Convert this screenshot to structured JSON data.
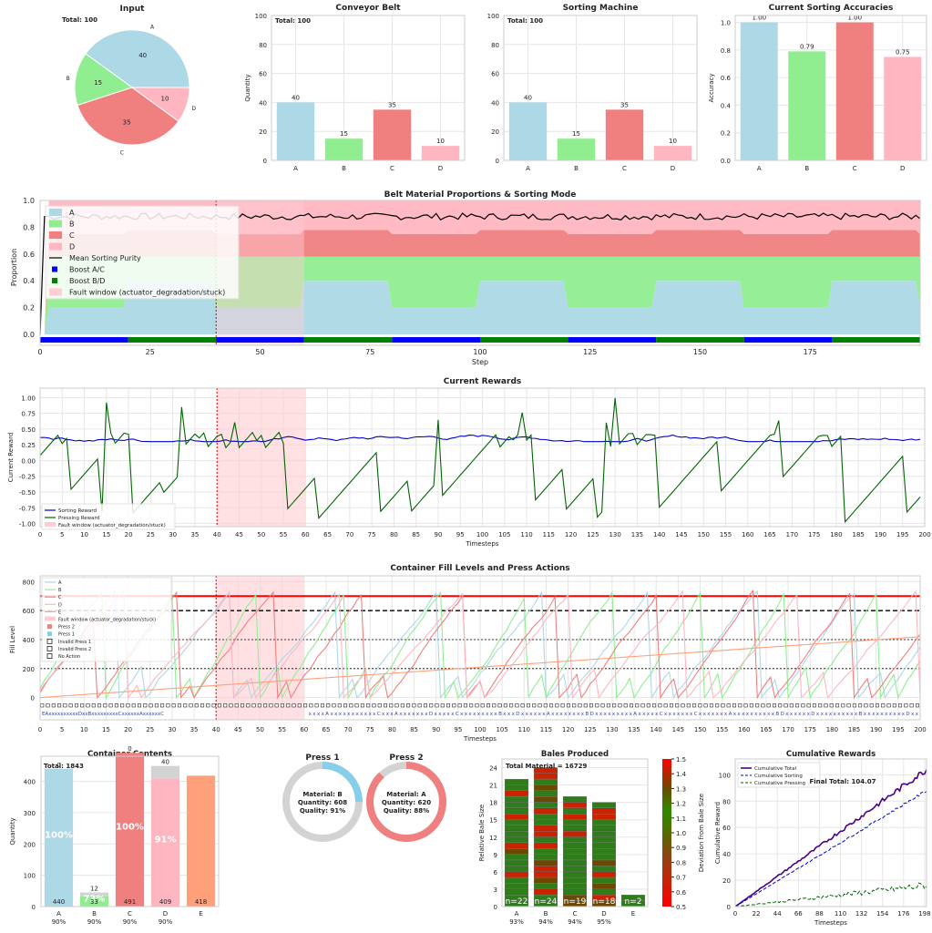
{
  "colors": {
    "A": "#add8e6",
    "B": "#90ee90",
    "C": "#f08080",
    "D": "#ffb6c1",
    "E": "#ffa07a",
    "grid": "#e6e6e6",
    "reward_sorting": "#0000cd",
    "reward_pressing": "#006400",
    "fault": "#ffcdd2",
    "boost_ac": "#0000ff",
    "boost_bd": "#008000",
    "purity": "#000000",
    "threshold_red": "#ff0000",
    "threshold_black": "#000000"
  },
  "input_pie": {
    "title": "Input",
    "total_label": "Total: 100",
    "slices": [
      {
        "label": "A",
        "value": 40
      },
      {
        "label": "B",
        "value": 15
      },
      {
        "label": "C",
        "value": 35
      },
      {
        "label": "D",
        "value": 10
      }
    ]
  },
  "conveyor": {
    "title": "Conveyor Belt",
    "total_label": "Total: 100",
    "ylabel": "Quantity",
    "categories": [
      "A",
      "B",
      "C",
      "D"
    ],
    "values": [
      40,
      15,
      35,
      10
    ],
    "ylim": [
      0,
      100
    ],
    "yticks": [
      "0",
      "20",
      "40",
      "60",
      "80",
      "100"
    ]
  },
  "sorting_machine": {
    "title": "Sorting Machine",
    "total_label": "Total: 100",
    "categories": [
      "A",
      "B",
      "C",
      "D"
    ],
    "values": [
      40,
      15,
      35,
      10
    ],
    "ylim": [
      0,
      100
    ],
    "yticks": [
      "0",
      "20",
      "40",
      "60",
      "80",
      "100"
    ]
  },
  "accuracies": {
    "title": "Current Sorting Accuracies",
    "ylabel": "Accuracy",
    "categories": [
      "A",
      "B",
      "C",
      "D"
    ],
    "values": [
      1.0,
      0.79,
      1.0,
      0.75
    ],
    "labels": [
      "1.00",
      "0.79",
      "1.00",
      "0.75"
    ],
    "ylim": [
      0,
      1.05
    ],
    "yticks": [
      "0.0",
      "0.2",
      "0.4",
      "0.6",
      "0.8",
      "1.0"
    ]
  },
  "proportions": {
    "title": "Belt Material Proportions & Sorting Mode",
    "xlabel": "Step",
    "ylabel": "Proportion",
    "xticks": [
      "0",
      "25",
      "50",
      "75",
      "100",
      "125",
      "150",
      "175"
    ],
    "yticks": [
      "0.0",
      "0.2",
      "0.4",
      "0.6",
      "0.8",
      "1.0"
    ],
    "legend": [
      "A",
      "B",
      "C",
      "D",
      "Mean Sorting Purity",
      "Boost A/C",
      "Boost B/D",
      "Fault window (actuator_degradation/stuck)"
    ],
    "fault_window": [
      40,
      60
    ]
  },
  "rewards": {
    "title": "Current Rewards",
    "xlabel": "Timesteps",
    "ylabel": "Current Reward",
    "xticks": [
      "0",
      "5",
      "10",
      "15",
      "20",
      "25",
      "30",
      "35",
      "40",
      "45",
      "50",
      "55",
      "60",
      "65",
      "70",
      "75",
      "80",
      "85",
      "90",
      "95",
      "100",
      "105",
      "110",
      "115",
      "120",
      "125",
      "130",
      "135",
      "140",
      "145",
      "150",
      "155",
      "160",
      "165",
      "170",
      "175",
      "180",
      "185",
      "190",
      "195",
      "200"
    ],
    "yticks": [
      "-1.00",
      "-0.75",
      "-0.50",
      "-0.25",
      "0.00",
      "0.25",
      "0.50",
      "0.75",
      "1.00"
    ],
    "legend": [
      "Sorting Reward",
      "Pressing Reward",
      "Fault window (actuator_degradation/stuck)"
    ],
    "fault_window": [
      40,
      60
    ]
  },
  "container_levels": {
    "title": "Container Fill Levels and Press Actions",
    "xlabel": "Timesteps",
    "ylabel": "Fill Level",
    "yticks": [
      "0",
      "200",
      "400",
      "600",
      "800"
    ],
    "legend": [
      "A",
      "B",
      "C",
      "D",
      "E",
      "Fault window (actuator_degradation/stuck)",
      "Press 2",
      "Press 1",
      "Invalid Press 1",
      "Invalid Press 2",
      "No Action"
    ],
    "thresholds": [
      700,
      600,
      400,
      200
    ],
    "action_row_text": "EAxxxxxxxxxxDxxBxxxxxxxxxCxxxxxxAxxxxxxC",
    "action_row_text_2": "xxxxAxxxxxxxxxxxCxxxAxxxxxxxDxxxxxCxxxxxxxxxBxxxDxxxxxxAxxxxxxxxBDxxxxxxxxxAxxxxxCxxxxxxxCxxxxxxxAxxxxxxxxxxBDxxxxxxDxxxxxxxxxxBxxxxxxxxxxDxx"
  },
  "container_contents": {
    "title": "Container Contents",
    "total_label": "Total: 1843",
    "ylabel": "Quantity",
    "categories": [
      "A",
      "B",
      "C",
      "D",
      "E"
    ],
    "percent_labels": [
      "90%",
      "90%",
      "90%",
      "90%",
      ""
    ],
    "values": [
      440,
      33,
      491,
      409,
      418
    ],
    "impurities": [
      0,
      12,
      0,
      40,
      0
    ],
    "inner_labels": [
      "100%",
      "73%",
      "100%",
      "91%",
      ""
    ],
    "top_marks": [
      "0",
      "12",
      "0",
      "40",
      ""
    ],
    "ylim": [
      0,
      480
    ],
    "yticks": [
      "0",
      "100",
      "200",
      "300",
      "400"
    ]
  },
  "presses": [
    {
      "title": "Press 1",
      "material_label": "Material: B",
      "quantity_label": "Quantity: 608",
      "quality_label": "Quality: 91%",
      "fill": 0.25,
      "color": "#87ceeb"
    },
    {
      "title": "Press 2",
      "material_label": "Material: A",
      "quantity_label": "Quantity: 620",
      "quality_label": "Quality: 88%",
      "fill": 0.88,
      "color": "#f08080"
    }
  ],
  "bales": {
    "title": "Bales Produced",
    "total_label": "Total Material = 16729",
    "ylabel": "Relative Bale Size",
    "categories": [
      "A",
      "B",
      "C",
      "D",
      "E"
    ],
    "counts": [
      22,
      24,
      19,
      18,
      2
    ],
    "count_labels": [
      "n=22",
      "n=24",
      "n=19",
      "n=18",
      "n=2"
    ],
    "quality_labels": [
      "93%",
      "94%",
      "94%",
      "95%",
      ""
    ],
    "yticks": [
      "0",
      "3",
      "6",
      "9",
      "12",
      "15",
      "18",
      "21",
      "24"
    ],
    "colorbar_label": "Deviation from Bale Size",
    "colorbar_ticks": [
      "0.5",
      "0.6",
      "0.7",
      "0.8",
      "0.9",
      "1.0",
      "1.1",
      "1.2",
      "1.3",
      "1.4",
      "1.5"
    ]
  },
  "cumulative": {
    "title": "Cumulative Rewards",
    "xlabel": "Timesteps",
    "ylabel": "Cumulative Reward",
    "legend": [
      "Cumulative Total",
      "Cumulative Sorting",
      "Cumulative Pressing"
    ],
    "final_label": "Final Total: 104.07",
    "xticks": [
      "0",
      "22",
      "44",
      "66",
      "88",
      "110",
      "132",
      "154",
      "176",
      "198"
    ],
    "yticks": [
      "0",
      "20",
      "40",
      "60",
      "80",
      "100"
    ],
    "final_total": 104.07,
    "final_sorting": 88,
    "final_pressing": 16
  },
  "chart_data": [
    {
      "type": "pie",
      "title": "Input",
      "categories": [
        "A",
        "B",
        "C",
        "D"
      ],
      "values": [
        40,
        15,
        35,
        10
      ]
    },
    {
      "type": "bar",
      "title": "Conveyor Belt",
      "categories": [
        "A",
        "B",
        "C",
        "D"
      ],
      "values": [
        40,
        15,
        35,
        10
      ],
      "ylabel": "Quantity",
      "ylim": [
        0,
        100
      ]
    },
    {
      "type": "bar",
      "title": "Sorting Machine",
      "categories": [
        "A",
        "B",
        "C",
        "D"
      ],
      "values": [
        40,
        15,
        35,
        10
      ],
      "ylim": [
        0,
        100
      ]
    },
    {
      "type": "bar",
      "title": "Current Sorting Accuracies",
      "categories": [
        "A",
        "B",
        "C",
        "D"
      ],
      "values": [
        1.0,
        0.79,
        1.0,
        0.75
      ],
      "ylabel": "Accuracy",
      "ylim": [
        0,
        1.05
      ]
    },
    {
      "type": "area",
      "title": "Belt Material Proportions & Sorting Mode",
      "xlabel": "Step",
      "ylabel": "Proportion",
      "x_range": [
        0,
        200
      ],
      "ylim": [
        0,
        1
      ]
    },
    {
      "type": "line",
      "title": "Current Rewards",
      "xlabel": "Timesteps",
      "ylabel": "Current Reward",
      "x_range": [
        0,
        200
      ],
      "ylim": [
        -1,
        1
      ]
    },
    {
      "type": "line",
      "title": "Container Fill Levels and Press Actions",
      "xlabel": "Timesteps",
      "ylabel": "Fill Level",
      "x_range": [
        0,
        200
      ],
      "ylim": [
        0,
        800
      ]
    },
    {
      "type": "bar",
      "title": "Container Contents",
      "categories": [
        "A",
        "B",
        "C",
        "D",
        "E"
      ],
      "values": [
        440,
        33,
        491,
        409,
        418
      ]
    },
    {
      "type": "bar",
      "title": "Bales Produced",
      "categories": [
        "A",
        "B",
        "C",
        "D",
        "E"
      ],
      "values": [
        22,
        24,
        19,
        18,
        2
      ]
    },
    {
      "type": "line",
      "title": "Cumulative Rewards",
      "xlabel": "Timesteps",
      "ylabel": "Cumulative Reward",
      "series": [
        {
          "name": "Cumulative Total",
          "final": 104.07
        },
        {
          "name": "Cumulative Sorting",
          "final": 88
        },
        {
          "name": "Cumulative Pressing",
          "final": 16
        }
      ]
    }
  ]
}
